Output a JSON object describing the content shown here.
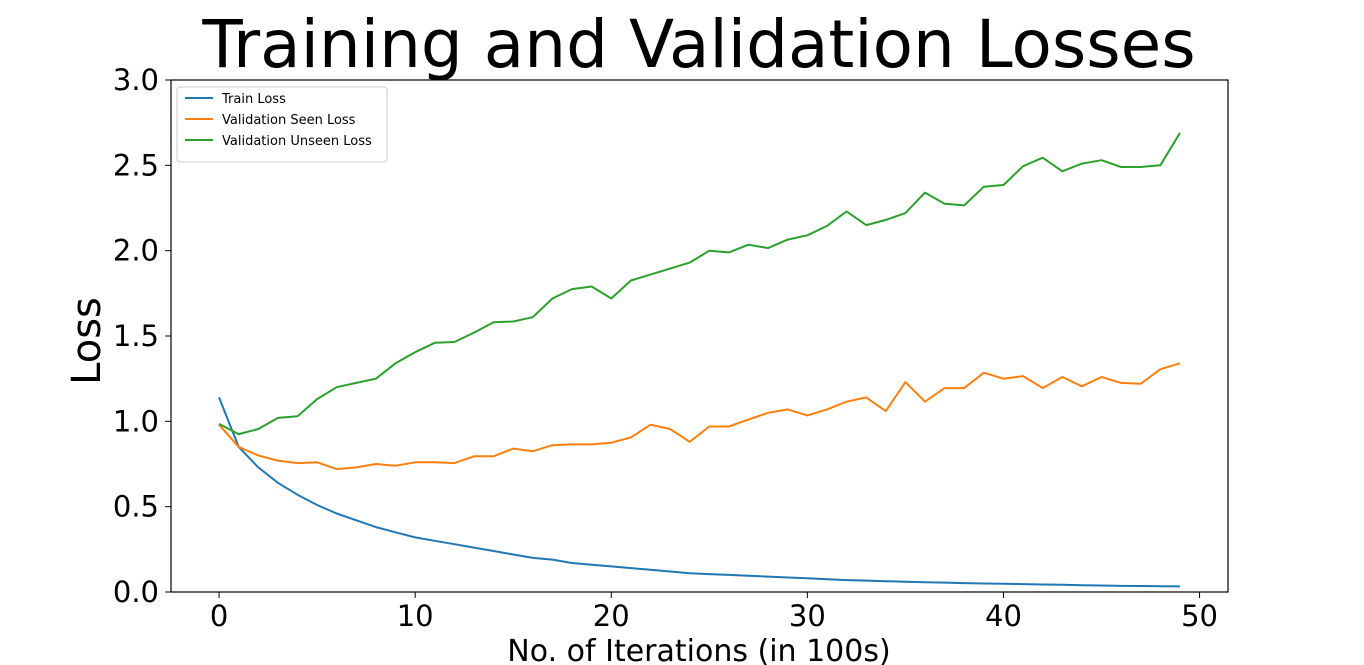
{
  "chart_data": {
    "type": "line",
    "title": "Training and Validation Losses",
    "xlabel": "No. of Iterations (in 100s)",
    "ylabel": "Loss",
    "xlim": [
      -2.45,
      51.45
    ],
    "ylim": [
      0,
      3.0
    ],
    "xticks": [
      0,
      10,
      20,
      30,
      40,
      50
    ],
    "yticks": [
      0.0,
      0.5,
      1.0,
      1.5,
      2.0,
      2.5,
      3.0
    ],
    "xtick_labels": [
      "0",
      "10",
      "20",
      "30",
      "40",
      "50"
    ],
    "ytick_labels": [
      "0.0",
      "0.5",
      "1.0",
      "1.5",
      "2.0",
      "2.5",
      "3.0"
    ],
    "grid": false,
    "legend_position": "upper-left",
    "x": [
      0,
      1,
      2,
      3,
      4,
      5,
      6,
      7,
      8,
      9,
      10,
      11,
      12,
      13,
      14,
      15,
      16,
      17,
      18,
      19,
      20,
      21,
      22,
      23,
      24,
      25,
      26,
      27,
      28,
      29,
      30,
      31,
      32,
      33,
      34,
      35,
      36,
      37,
      38,
      39,
      40,
      41,
      42,
      43,
      44,
      45,
      46,
      47,
      48,
      49
    ],
    "series": [
      {
        "name": "Train Loss",
        "color": "#1f77b4",
        "values": [
          1.14,
          0.85,
          0.73,
          0.64,
          0.57,
          0.51,
          0.46,
          0.42,
          0.38,
          0.35,
          0.32,
          0.3,
          0.28,
          0.26,
          0.24,
          0.22,
          0.2,
          0.19,
          0.17,
          0.16,
          0.15,
          0.14,
          0.13,
          0.12,
          0.11,
          0.105,
          0.1,
          0.095,
          0.09,
          0.085,
          0.08,
          0.075,
          0.07,
          0.067,
          0.063,
          0.06,
          0.057,
          0.055,
          0.052,
          0.05,
          0.048,
          0.046,
          0.044,
          0.042,
          0.04,
          0.038,
          0.036,
          0.035,
          0.034,
          0.033
        ]
      },
      {
        "name": "Validation Seen Loss",
        "color": "#ff7f0e",
        "values": [
          0.98,
          0.85,
          0.8,
          0.77,
          0.755,
          0.76,
          0.72,
          0.73,
          0.75,
          0.74,
          0.76,
          0.76,
          0.755,
          0.795,
          0.795,
          0.84,
          0.825,
          0.86,
          0.865,
          0.865,
          0.875,
          0.905,
          0.98,
          0.955,
          0.88,
          0.97,
          0.97,
          1.01,
          1.05,
          1.07,
          1.035,
          1.07,
          1.115,
          1.14,
          1.06,
          1.23,
          1.115,
          1.195,
          1.195,
          1.285,
          1.25,
          1.265,
          1.195,
          1.26,
          1.205,
          1.26,
          1.225,
          1.22,
          1.305,
          1.34
        ]
      },
      {
        "name": "Validation Unseen Loss",
        "color": "#2ca02c",
        "values": [
          0.985,
          0.925,
          0.955,
          1.02,
          1.03,
          1.13,
          1.2,
          1.225,
          1.25,
          1.34,
          1.405,
          1.46,
          1.465,
          1.52,
          1.58,
          1.585,
          1.61,
          1.72,
          1.775,
          1.79,
          1.72,
          1.825,
          1.86,
          1.895,
          1.93,
          2.0,
          1.99,
          2.035,
          2.015,
          2.065,
          2.09,
          2.145,
          2.23,
          2.15,
          2.18,
          2.22,
          2.34,
          2.275,
          2.265,
          2.375,
          2.385,
          2.495,
          2.545,
          2.465,
          2.51,
          2.53,
          2.49,
          2.49,
          2.5,
          2.69
        ]
      }
    ]
  }
}
